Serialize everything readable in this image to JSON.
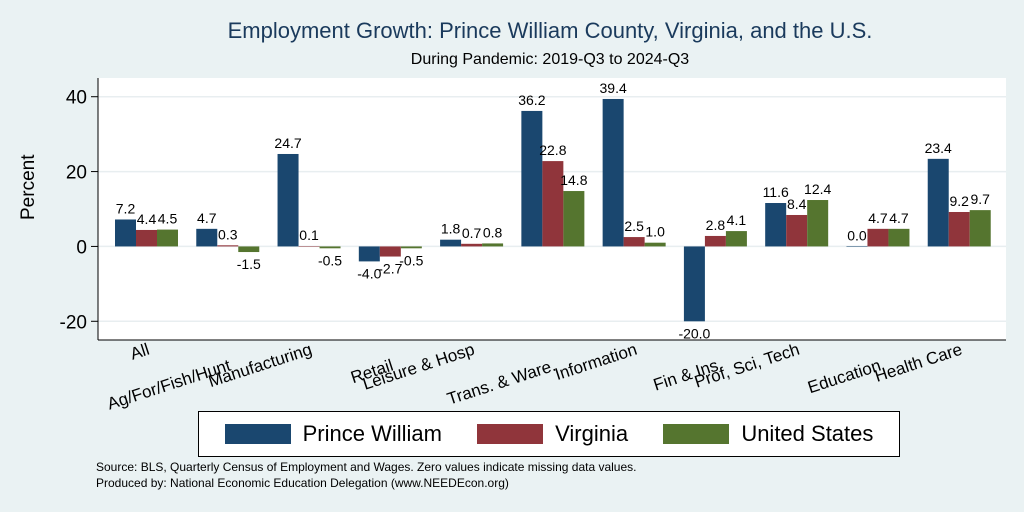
{
  "chart_data": {
    "type": "bar",
    "title": "Employment Growth: Prince William County, Virginia, and the U.S.",
    "subtitle": "During Pandemic: 2019-Q3 to 2024-Q3",
    "ylabel": "Percent",
    "xlabel": "",
    "ylim": [
      -25,
      45
    ],
    "yticks": [
      -20,
      0,
      20,
      40
    ],
    "grid": true,
    "legend_position": "bottom",
    "categories": [
      "All",
      "Ag/For/Fish/Hunt",
      "Manufacturing",
      "Retail",
      "Leisure & Hosp",
      "Trans. & Ware.",
      "Information",
      "Fin & Ins",
      "Prof, Sci, Tech",
      "Education",
      "Health Care"
    ],
    "series": [
      {
        "name": "Prince William",
        "color": "#1a476f",
        "values": [
          7.2,
          4.7,
          24.7,
          -4.0,
          1.8,
          36.2,
          39.4,
          -20.0,
          11.6,
          0.0,
          23.4
        ]
      },
      {
        "name": "Virginia",
        "color": "#90353b",
        "values": [
          4.4,
          0.3,
          0.1,
          -2.7,
          0.7,
          22.8,
          2.5,
          2.8,
          8.4,
          4.7,
          9.2
        ]
      },
      {
        "name": "United States",
        "color": "#55752f",
        "values": [
          4.5,
          -1.5,
          -0.5,
          -0.5,
          0.8,
          14.8,
          1.0,
          4.1,
          12.4,
          4.7,
          9.7
        ]
      }
    ]
  },
  "footer": {
    "source": "Source: BLS, Quarterly Census of Employment and Wages. Zero values indicate missing data values.",
    "produced": "Produced by: National Economic Education Delegation (www.NEEDEcon.org)"
  }
}
